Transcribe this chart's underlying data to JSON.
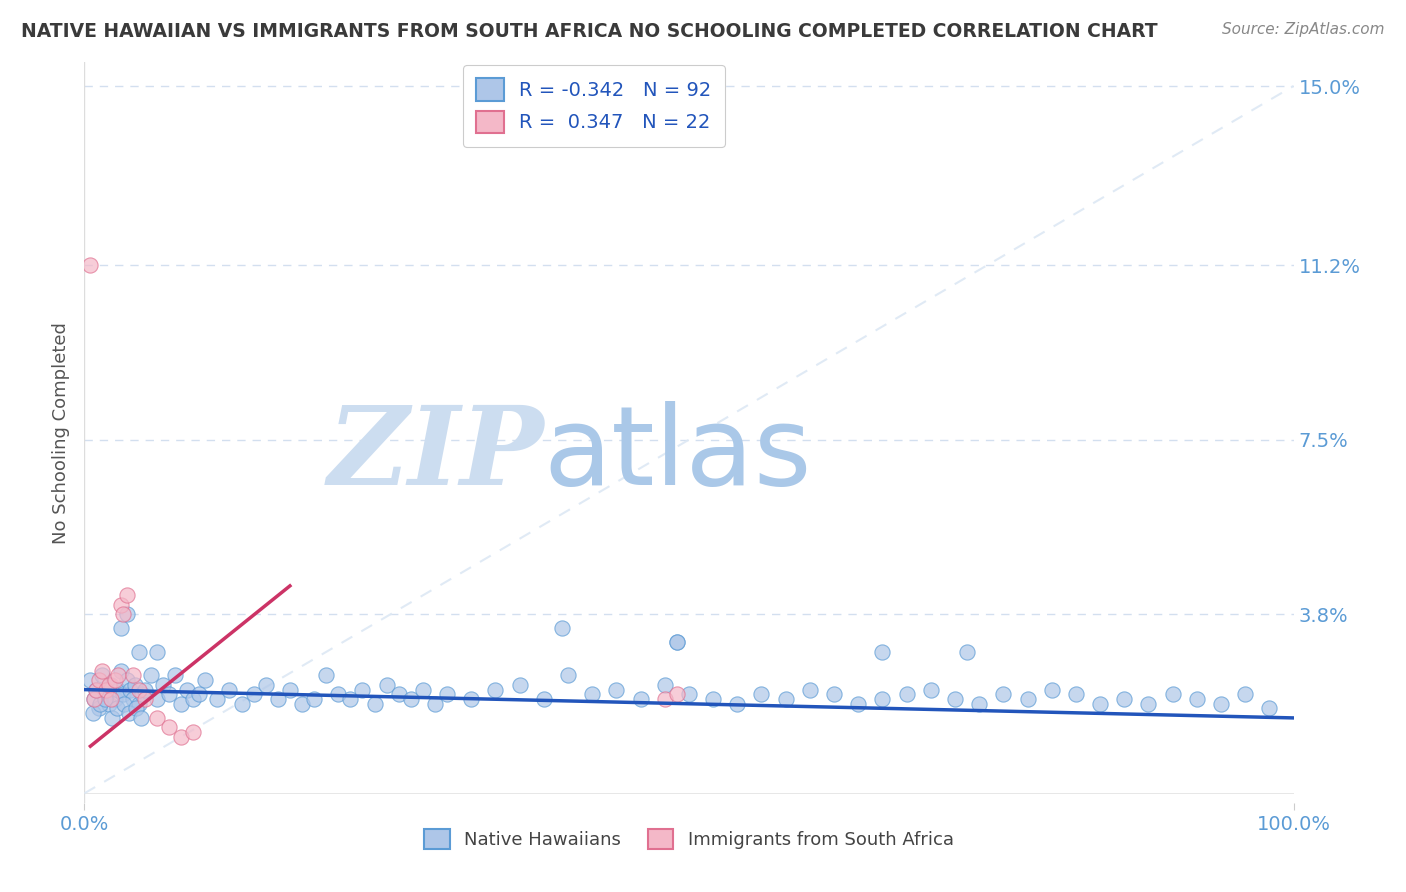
{
  "title": "NATIVE HAWAIIAN VS IMMIGRANTS FROM SOUTH AFRICA NO SCHOOLING COMPLETED CORRELATION CHART",
  "source": "Source: ZipAtlas.com",
  "ylabel": "No Schooling Completed",
  "watermark_zip": "ZIP",
  "watermark_atlas": "atlas",
  "xlim": [
    0.0,
    1.0
  ],
  "ylim": [
    -0.002,
    0.155
  ],
  "yticks": [
    0.0,
    0.038,
    0.075,
    0.112,
    0.15
  ],
  "ytick_labels": [
    "",
    "3.8%",
    "7.5%",
    "11.2%",
    "15.0%"
  ],
  "xticks": [
    0.0,
    1.0
  ],
  "xtick_labels": [
    "0.0%",
    "100.0%"
  ],
  "blue_R": -0.342,
  "blue_N": 92,
  "pink_R": 0.347,
  "pink_N": 22,
  "blue_color": "#aec6e8",
  "pink_color": "#f4b8c8",
  "blue_edge_color": "#5b9bd5",
  "pink_edge_color": "#e07090",
  "blue_line_color": "#2255bb",
  "pink_line_color": "#cc3366",
  "title_color": "#3a3a3a",
  "source_color": "#888888",
  "axis_label_color": "#5b9bd5",
  "grid_color": "#c8d8ec",
  "diag_color": "#dde8f4",
  "watermark_zip_color": "#ccddf0",
  "watermark_atlas_color": "#aac8e8",
  "legend_label_blue": "Native Hawaiians",
  "legend_label_pink": "Immigrants from South Africa",
  "legend_box_color": "#e8f0fa",
  "blue_scatter_x": [
    0.005,
    0.008,
    0.01,
    0.012,
    0.015,
    0.018,
    0.02,
    0.022,
    0.025,
    0.028,
    0.03,
    0.032,
    0.035,
    0.038,
    0.04,
    0.042,
    0.045,
    0.048,
    0.05,
    0.055,
    0.06,
    0.065,
    0.07,
    0.075,
    0.08,
    0.085,
    0.09,
    0.095,
    0.1,
    0.11,
    0.12,
    0.13,
    0.14,
    0.15,
    0.16,
    0.17,
    0.18,
    0.19,
    0.2,
    0.21,
    0.22,
    0.23,
    0.24,
    0.25,
    0.26,
    0.27,
    0.28,
    0.29,
    0.3,
    0.32,
    0.34,
    0.36,
    0.38,
    0.4,
    0.42,
    0.44,
    0.46,
    0.48,
    0.5,
    0.52,
    0.54,
    0.56,
    0.58,
    0.6,
    0.62,
    0.64,
    0.66,
    0.68,
    0.7,
    0.72,
    0.74,
    0.76,
    0.78,
    0.8,
    0.82,
    0.84,
    0.86,
    0.88,
    0.9,
    0.92,
    0.94,
    0.96,
    0.98,
    0.007,
    0.013,
    0.017,
    0.023,
    0.027,
    0.033,
    0.037,
    0.043,
    0.047
  ],
  "blue_scatter_y": [
    0.024,
    0.02,
    0.022,
    0.018,
    0.025,
    0.021,
    0.019,
    0.023,
    0.02,
    0.022,
    0.026,
    0.021,
    0.024,
    0.022,
    0.02,
    0.023,
    0.019,
    0.021,
    0.022,
    0.025,
    0.02,
    0.023,
    0.021,
    0.025,
    0.019,
    0.022,
    0.02,
    0.021,
    0.024,
    0.02,
    0.022,
    0.019,
    0.021,
    0.023,
    0.02,
    0.022,
    0.019,
    0.02,
    0.025,
    0.021,
    0.02,
    0.022,
    0.019,
    0.023,
    0.021,
    0.02,
    0.022,
    0.019,
    0.021,
    0.02,
    0.022,
    0.023,
    0.02,
    0.025,
    0.021,
    0.022,
    0.02,
    0.023,
    0.021,
    0.02,
    0.019,
    0.021,
    0.02,
    0.022,
    0.021,
    0.019,
    0.02,
    0.021,
    0.022,
    0.02,
    0.019,
    0.021,
    0.02,
    0.022,
    0.021,
    0.019,
    0.02,
    0.019,
    0.021,
    0.02,
    0.019,
    0.021,
    0.018,
    0.017,
    0.019,
    0.02,
    0.016,
    0.018,
    0.019,
    0.017,
    0.018,
    0.016
  ],
  "blue_scatter_extra_x": [
    0.03,
    0.045,
    0.06,
    0.035,
    0.395,
    0.49,
    0.66,
    0.49,
    0.73
  ],
  "blue_scatter_extra_y": [
    0.035,
    0.03,
    0.03,
    0.038,
    0.035,
    0.032,
    0.03,
    0.032,
    0.03
  ],
  "pink_scatter_x": [
    0.005,
    0.008,
    0.01,
    0.012,
    0.015,
    0.018,
    0.02,
    0.022,
    0.025,
    0.028,
    0.03,
    0.032,
    0.035,
    0.04,
    0.045,
    0.05,
    0.06,
    0.07,
    0.08,
    0.09,
    0.48,
    0.49
  ],
  "pink_scatter_y": [
    0.112,
    0.02,
    0.022,
    0.024,
    0.026,
    0.022,
    0.023,
    0.02,
    0.024,
    0.025,
    0.04,
    0.038,
    0.042,
    0.025,
    0.022,
    0.02,
    0.016,
    0.014,
    0.012,
    0.013,
    0.02,
    0.021
  ],
  "pink_trend_x_start": 0.005,
  "pink_trend_x_end": 0.17,
  "blue_trend_x_start": 0.0,
  "blue_trend_x_end": 1.0,
  "blue_trend_y_start": 0.022,
  "blue_trend_y_end": 0.016,
  "pink_trend_y_start": 0.01,
  "pink_trend_y_end": 0.044
}
